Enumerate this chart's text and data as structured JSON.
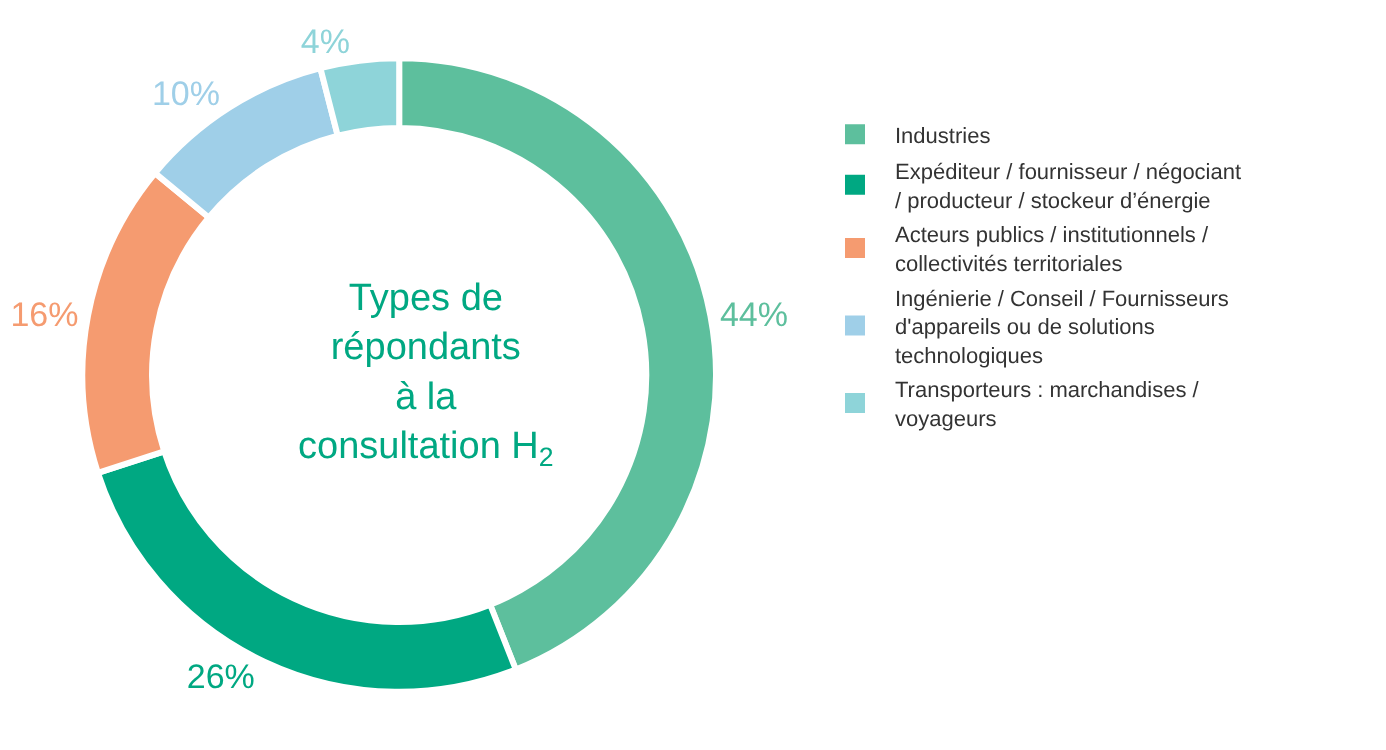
{
  "chart_data": {
    "type": "donut",
    "title": "Types de répondants à la consultation H$_{2}$",
    "categories": [
      "Industries",
      "Expéditeur / fournisseur / négociant / producteur / stockeur d’énergie",
      "Acteurs publics / institutionnels / collectivités territoriales",
      "Ingénierie / Conseil / Fournisseurs d'appareils ou de solutions technologiques",
      "Transporteurs : marchandises / voyageurs"
    ],
    "values": [
      44,
      26,
      16,
      10,
      4
    ],
    "value_labels": [
      "44%",
      "26%",
      "16%",
      "10%",
      "4%"
    ],
    "colors": [
      "#5dbf9d",
      "#00a882",
      "#f59b70",
      "#9fcfe8",
      "#8ed4d9"
    ],
    "legend": "right"
  }
}
